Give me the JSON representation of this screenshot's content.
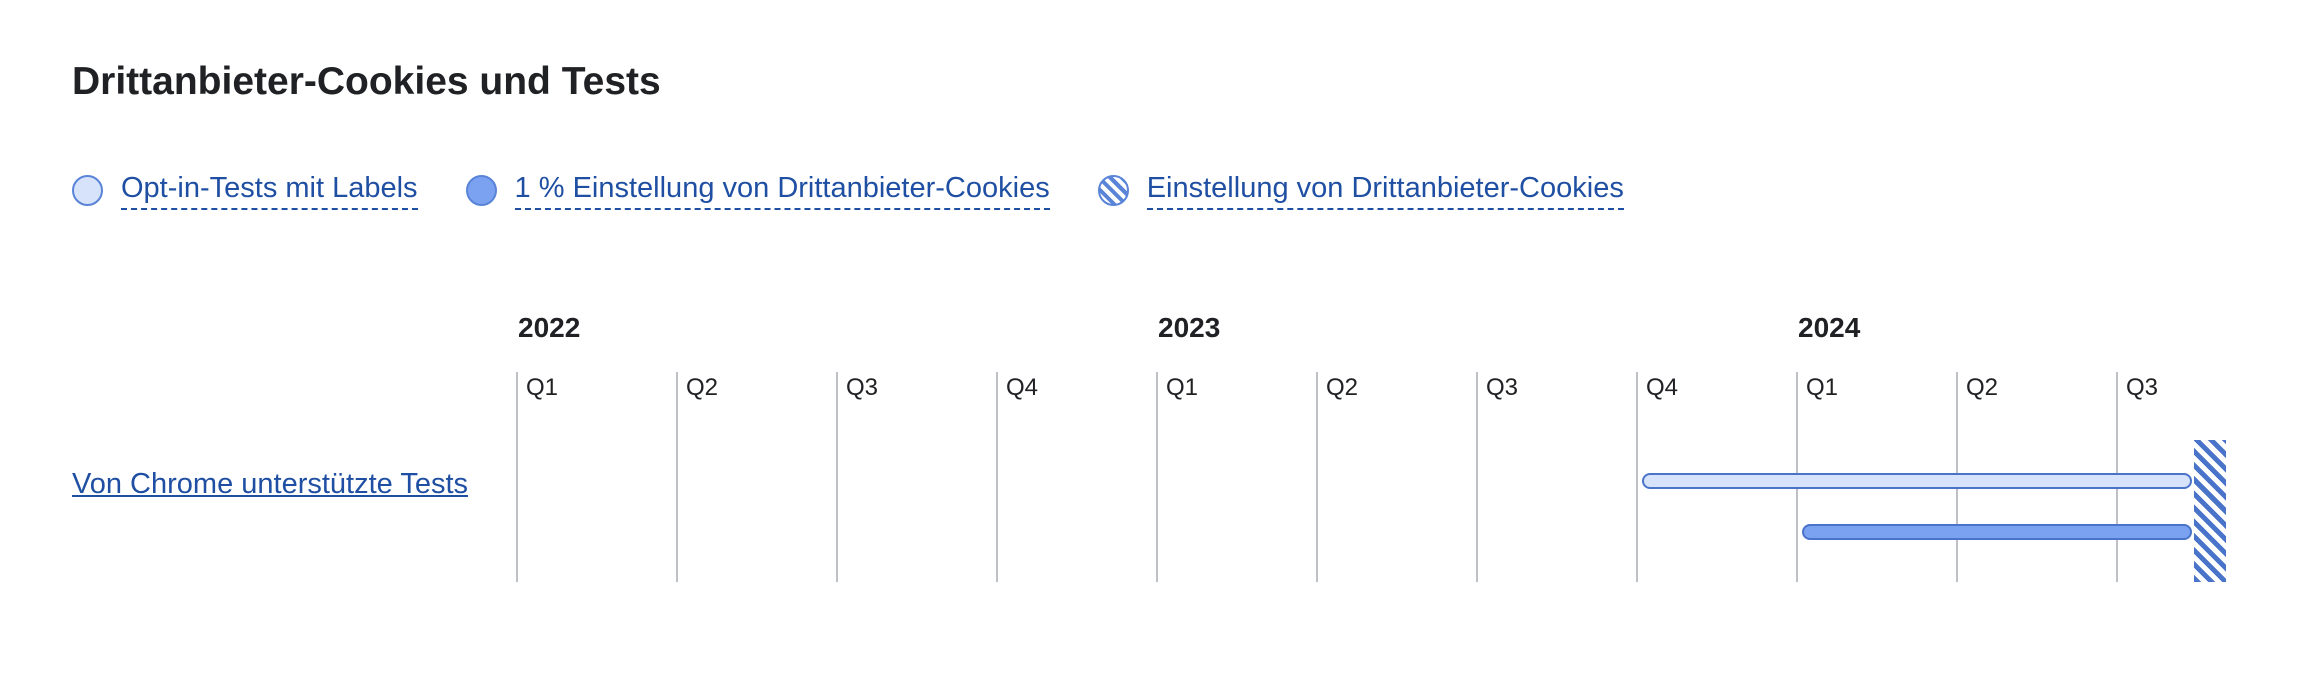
{
  "title": "Drittanbieter-Cookies und Tests",
  "legend": [
    {
      "label": "Opt-in-Tests mit Labels",
      "pattern": "light",
      "color": "#d6e3fa"
    },
    {
      "label": "1 % Einstellung von Drittanbieter-Cookies",
      "pattern": "solid",
      "color": "#7aa2f0"
    },
    {
      "label": "Einstellung von Drittanbieter-Cookies",
      "pattern": "striped",
      "color": "#4a74c9"
    }
  ],
  "timeline": {
    "years": [
      "2022",
      "2023",
      "2024"
    ],
    "quarters": [
      "Q1",
      "Q2",
      "Q3",
      "Q4",
      "Q1",
      "Q2",
      "Q3",
      "Q4",
      "Q1",
      "Q2",
      "Q3"
    ]
  },
  "row": {
    "label": "Von Chrome unterstützte Tests",
    "bars": [
      {
        "series": "Opt-in-Tests mit Labels",
        "start_quarter": 7,
        "end_quarter": 10.5
      },
      {
        "series": "1 % Einstellung von Drittanbieter-Cookies",
        "start_quarter": 8,
        "end_quarter": 10.5
      },
      {
        "series": "Einstellung von Drittanbieter-Cookies",
        "start_quarter": 10.5,
        "end_quarter": 10.7
      }
    ]
  },
  "colors": {
    "accent": "#1f4fa3",
    "grid": "#bdc1c6"
  }
}
